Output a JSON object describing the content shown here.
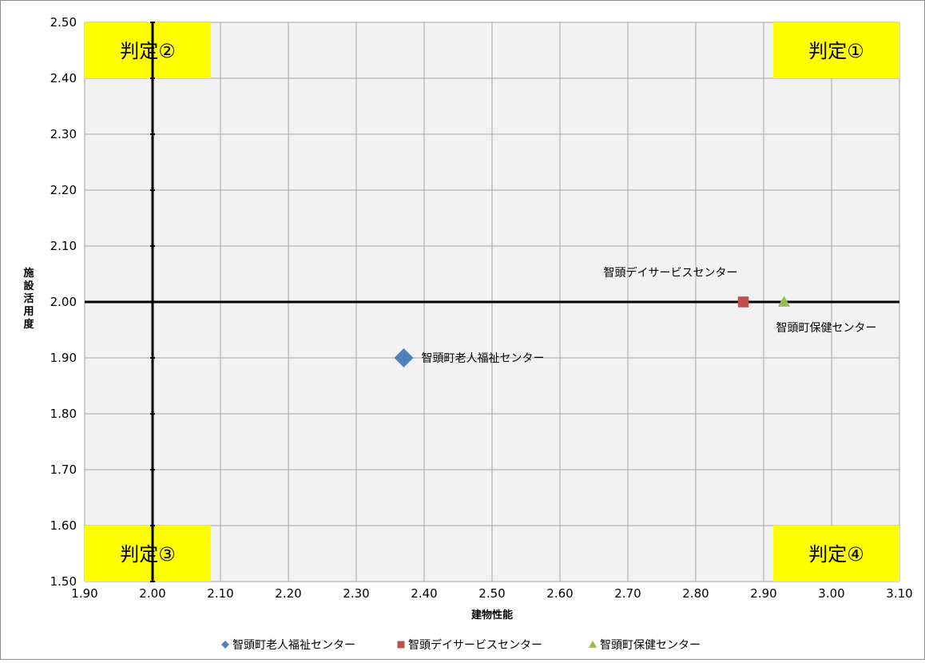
{
  "chart_data": {
    "type": "scatter",
    "xlabel": "建物性能",
    "ylabel": "施設活用度",
    "xlim": [
      1.9,
      3.1
    ],
    "ylim": [
      1.5,
      2.5
    ],
    "x_ticks": [
      "1.90",
      "2.00",
      "2.10",
      "2.20",
      "2.30",
      "2.40",
      "2.50",
      "2.60",
      "2.70",
      "2.80",
      "2.90",
      "3.00",
      "3.10"
    ],
    "y_ticks": [
      "1.50",
      "1.60",
      "1.70",
      "1.80",
      "1.90",
      "2.00",
      "2.10",
      "2.20",
      "2.30",
      "2.40",
      "2.50"
    ],
    "grid": true,
    "legend_position": "bottom",
    "reference_lines": {
      "x": 2.0,
      "y": 2.0
    },
    "quadrants": {
      "top_left": "判定②",
      "top_right": "判定①",
      "bottom_left": "判定③",
      "bottom_right": "判定④"
    },
    "series": [
      {
        "name": "智頭町老人福祉センター",
        "marker": "diamond",
        "color": "#4F81BD",
        "x": [
          2.37
        ],
        "y": [
          1.9
        ],
        "label_position": "right"
      },
      {
        "name": "智頭デイサービスセンター",
        "marker": "square",
        "color": "#C0504D",
        "x": [
          2.87
        ],
        "y": [
          2.0
        ],
        "label_position": "above-left"
      },
      {
        "name": "智頭町保健センター",
        "marker": "triangle",
        "color": "#9BBB59",
        "x": [
          2.93
        ],
        "y": [
          2.0
        ],
        "label_position": "below"
      }
    ]
  }
}
